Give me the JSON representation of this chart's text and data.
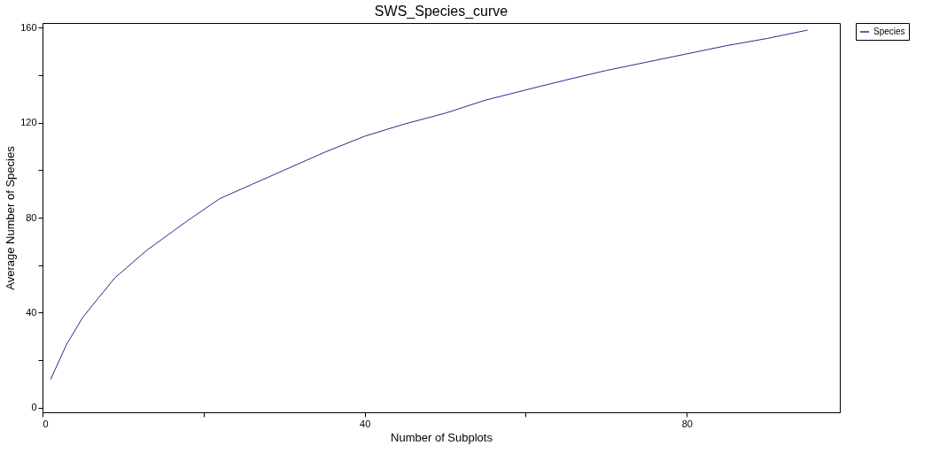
{
  "chart_data": {
    "type": "line",
    "title": "SWS_Species_curve",
    "xlabel": "Number of Subplots",
    "ylabel": "Average Number of Species",
    "xlim": [
      0,
      99
    ],
    "ylim": [
      -2,
      162
    ],
    "xticks": [
      0,
      {
        "value": 20,
        "label": null
      },
      40,
      {
        "value": 60,
        "label": null
      },
      80
    ],
    "yticks": [
      0,
      {
        "value": 20,
        "label": null
      },
      40,
      {
        "value": 60,
        "label": null
      },
      80,
      {
        "value": 100,
        "label": null
      },
      120,
      {
        "value": 140,
        "label": null
      },
      160
    ],
    "grid": false,
    "legend": "right",
    "marker": "none",
    "line_style": "solid",
    "series": [
      {
        "name": "Species",
        "color": "#2a2a8c",
        "x": [
          1,
          3,
          5,
          7,
          9,
          13,
          18,
          22,
          26,
          30,
          35,
          40,
          45,
          50,
          55,
          60,
          65,
          70,
          75,
          80,
          85,
          90,
          95
        ],
        "values": [
          11.8,
          26.7,
          38,
          46.4,
          54.7,
          66.4,
          78.7,
          88,
          94,
          100,
          107.5,
          114.3,
          119.5,
          124,
          129.5,
          133.8,
          138,
          142,
          145.5,
          149,
          152.5,
          155.5,
          159
        ]
      }
    ]
  }
}
